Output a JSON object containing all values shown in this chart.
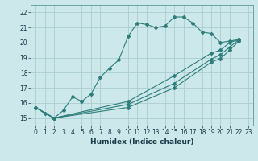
{
  "xlabel": "Humidex (Indice chaleur)",
  "ylabel": "",
  "bg_color": "#cce8ea",
  "grid_color": "#aacdd2",
  "line_color": "#2e7d7a",
  "xlim": [
    -0.5,
    23.5
  ],
  "ylim": [
    14.5,
    22.5
  ],
  "yticks": [
    15,
    16,
    17,
    18,
    19,
    20,
    21,
    22
  ],
  "xticks": [
    0,
    1,
    2,
    3,
    4,
    5,
    6,
    7,
    8,
    9,
    10,
    11,
    12,
    13,
    14,
    15,
    16,
    17,
    18,
    19,
    20,
    21,
    22,
    23
  ],
  "lines": [
    {
      "x": [
        0,
        1,
        2,
        3,
        4,
        5,
        6,
        7,
        8,
        9,
        10,
        11,
        12,
        13,
        14,
        15,
        16,
        17,
        18,
        19,
        20,
        21,
        22
      ],
      "y": [
        15.7,
        15.3,
        15.0,
        15.5,
        16.4,
        16.1,
        16.6,
        17.7,
        18.3,
        18.85,
        20.4,
        21.3,
        21.2,
        21.0,
        21.1,
        21.7,
        21.7,
        21.3,
        20.7,
        20.6,
        20.0,
        20.1,
        20.2
      ]
    },
    {
      "x": [
        0,
        2,
        10,
        15,
        19,
        20,
        21,
        22
      ],
      "y": [
        15.7,
        15.0,
        16.1,
        17.8,
        19.3,
        19.5,
        20.0,
        20.2
      ]
    },
    {
      "x": [
        0,
        2,
        10,
        15,
        19,
        20,
        21,
        22
      ],
      "y": [
        15.7,
        15.0,
        15.9,
        17.3,
        18.9,
        19.2,
        19.7,
        20.2
      ]
    },
    {
      "x": [
        0,
        2,
        10,
        15,
        19,
        20,
        21,
        22
      ],
      "y": [
        15.7,
        15.0,
        15.7,
        17.0,
        18.7,
        18.95,
        19.5,
        20.1
      ]
    }
  ]
}
